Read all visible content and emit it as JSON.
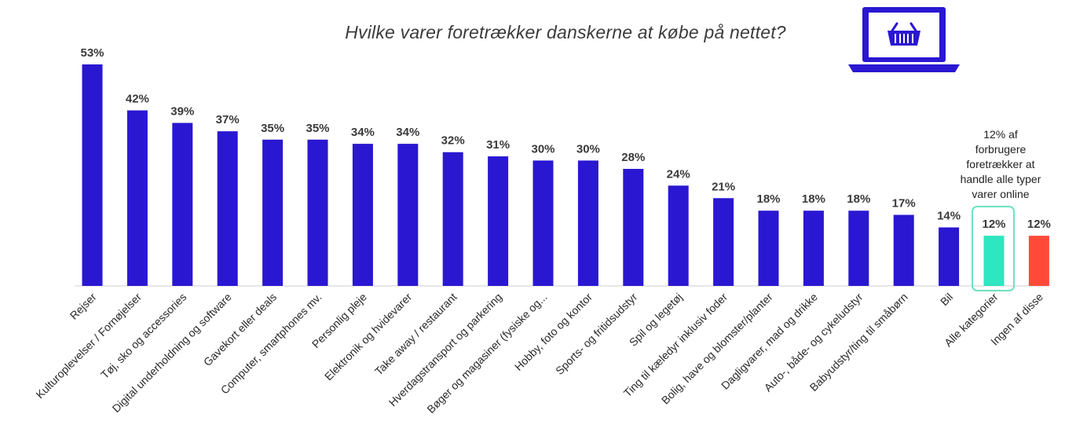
{
  "chart_data": {
    "type": "bar",
    "title": "Hvilke varer foretrækker danskerne at købe på nettet?",
    "unit": "%",
    "categories": [
      "Rejser",
      "Kulturoplevelser / Fornøjelser",
      "Tøj, sko og accessories",
      "Digital underholdning og software",
      "Gavekort eller deals",
      "Computer, smartphones mv.",
      "Personlig pleje",
      "Elektronik og hvidevarer",
      "Take away / restaurant",
      "Hverdagstransport og parkering",
      "Bøger og magasiner (fysiske og...",
      "Hobby, foto og kontor",
      "Sports- og fritidsudstyr",
      "Spil og legetøj",
      "Ting til kæledyr inklusiv foder",
      "Bolig, have og blomster/planter",
      "Dagligvarer, mad og drikke",
      "Auto-, både- og cykeludstyr",
      "Babyudstyr/ting til småbørn",
      "Bil",
      "Alle kategorier",
      "Ingen af disse"
    ],
    "values": [
      53,
      42,
      39,
      37,
      35,
      35,
      34,
      34,
      32,
      31,
      30,
      30,
      28,
      24,
      21,
      18,
      18,
      18,
      17,
      14,
      12,
      12
    ],
    "value_labels": [
      "53%",
      "42%",
      "39%",
      "37%",
      "35%",
      "35%",
      "34%",
      "34%",
      "32%",
      "31%",
      "30%",
      "30%",
      "28%",
      "24%",
      "21%",
      "18%",
      "18%",
      "18%",
      "17%",
      "14%",
      "12%",
      "12%"
    ],
    "colors": {
      "default": "#2a17d2",
      "Alle kategorier": "#2ee6bf",
      "Ingen af disse": "#ff4a3a",
      "highlight_border": "#6ee0c4",
      "laptop": "#2a17d2"
    },
    "ylim": [
      0,
      53
    ],
    "grid": false,
    "legend": "none",
    "annotation": "12% af\nforbrugere\nforetrækker at\nhandle alle typer\nvarer online"
  },
  "icons": {
    "laptop": "laptop-shopping-basket-icon"
  }
}
